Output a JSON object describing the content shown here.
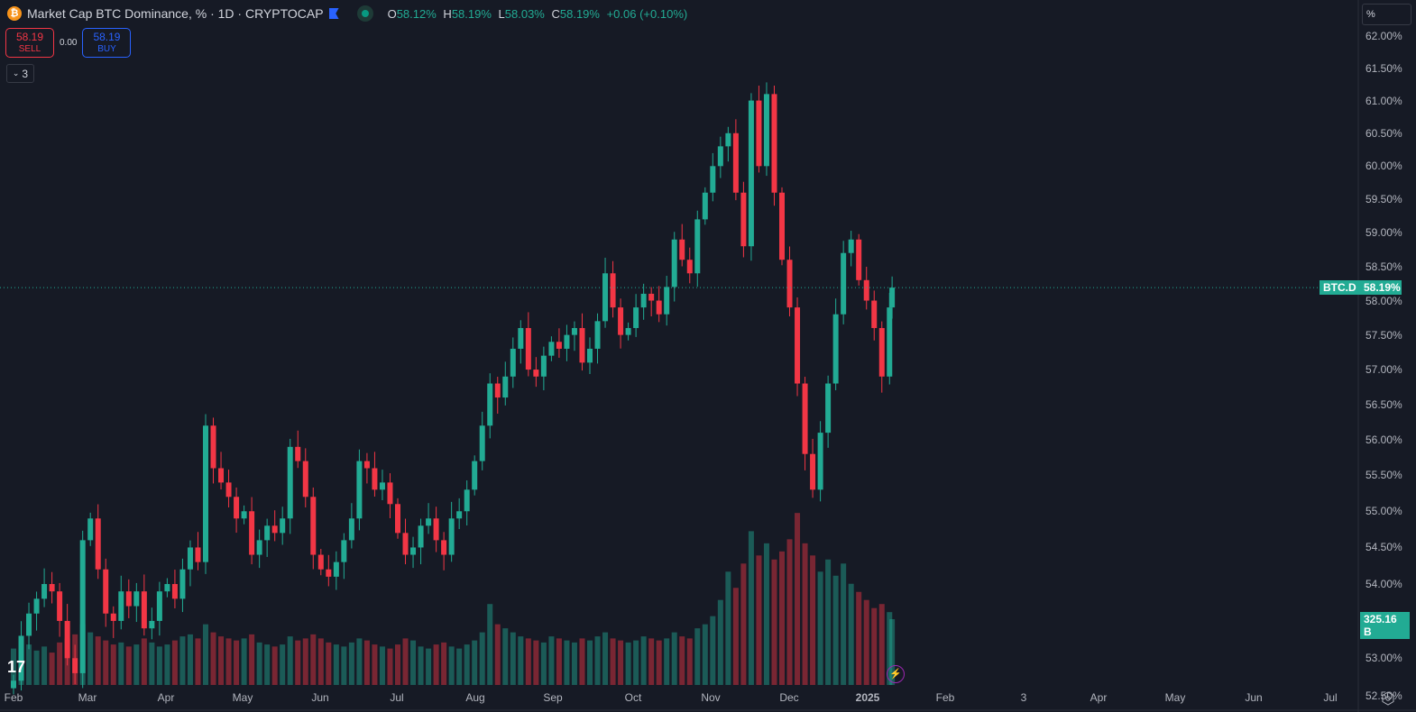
{
  "header": {
    "title": "Market Cap BTC Dominance, % · 1D · CRYPTOCAP",
    "o_label": "O",
    "o": "58.12%",
    "h_label": "H",
    "h": "58.19%",
    "l_label": "L",
    "l": "58.03%",
    "c_label": "C",
    "c": "58.19%",
    "change": "+0.06 (+0.10%)",
    "symbol_icon": "bitcoin-icon"
  },
  "trade": {
    "sell_price": "58.19",
    "sell_label": "SELL",
    "spread": "0.00",
    "buy_price": "58.19",
    "buy_label": "BUY"
  },
  "indicators_collapsed": "3",
  "scale_mode": "%",
  "tags": {
    "symbol": "BTC.D",
    "price": "58.19%",
    "volume": "325.16 B"
  },
  "colors": {
    "up": "#22ab94",
    "down": "#f23645",
    "bg": "#161a25"
  },
  "chart_data": {
    "type": "candlestick",
    "title": "Market Cap BTC Dominance, %",
    "interval": "1D",
    "source": "CRYPTOCAP",
    "y_axis": {
      "scale": "log",
      "range": [
        52.5,
        62.0
      ],
      "ticks": [
        "62.00%",
        "61.50%",
        "61.00%",
        "60.50%",
        "60.00%",
        "59.50%",
        "59.00%",
        "58.50%",
        "58.00%",
        "57.50%",
        "57.00%",
        "56.50%",
        "56.00%",
        "55.50%",
        "55.00%",
        "54.50%",
        "54.00%",
        "53.50%",
        "53.00%",
        "52.50%"
      ]
    },
    "x_axis": {
      "ticks": [
        "Feb",
        "Mar",
        "Apr",
        "May",
        "Jun",
        "Jul",
        "Aug",
        "Sep",
        "Oct",
        "Nov",
        "Dec",
        "2025",
        "Feb",
        "3",
        "Apr",
        "May",
        "Jun",
        "Jul"
      ]
    },
    "start_date": "2024-02-01",
    "step_days": 3,
    "close": [
      52.7,
      53.3,
      53.6,
      53.8,
      54.0,
      53.9,
      53.5,
      53.0,
      52.8,
      54.6,
      54.9,
      54.2,
      53.6,
      53.5,
      53.9,
      53.7,
      53.9,
      53.4,
      53.5,
      53.9,
      54.0,
      53.8,
      54.2,
      54.5,
      54.3,
      56.2,
      55.6,
      55.4,
      55.2,
      54.9,
      55.0,
      54.4,
      54.6,
      54.8,
      54.7,
      54.9,
      55.9,
      55.7,
      55.2,
      54.4,
      54.2,
      54.1,
      54.3,
      54.6,
      54.9,
      55.7,
      55.6,
      55.3,
      55.4,
      55.1,
      54.7,
      54.4,
      54.5,
      54.8,
      54.9,
      54.6,
      54.4,
      54.9,
      55.0,
      55.3,
      55.7,
      56.2,
      56.8,
      56.6,
      56.9,
      57.3,
      57.6,
      57.0,
      56.9,
      57.2,
      57.4,
      57.3,
      57.5,
      57.6,
      57.1,
      57.3,
      57.7,
      58.4,
      57.9,
      57.5,
      57.6,
      57.9,
      58.1,
      58.0,
      57.8,
      58.2,
      58.9,
      58.6,
      58.4,
      59.2,
      59.6,
      60.0,
      60.3,
      60.5,
      59.6,
      58.8,
      61.0,
      60.0,
      61.1,
      59.6,
      58.6,
      57.9,
      56.8,
      55.8,
      55.3,
      56.1,
      56.8,
      57.8,
      58.7,
      58.9,
      58.3,
      58.0,
      57.6,
      56.9,
      57.9,
      58.19
    ],
    "volume_b": [
      180,
      220,
      200,
      170,
      190,
      160,
      210,
      230,
      250,
      300,
      260,
      240,
      220,
      200,
      210,
      190,
      200,
      230,
      210,
      190,
      200,
      220,
      240,
      250,
      230,
      300,
      260,
      240,
      230,
      220,
      230,
      250,
      210,
      200,
      190,
      200,
      240,
      220,
      230,
      250,
      230,
      210,
      200,
      190,
      210,
      230,
      220,
      200,
      190,
      180,
      200,
      230,
      220,
      190,
      180,
      200,
      210,
      190,
      180,
      200,
      220,
      260,
      400,
      300,
      280,
      260,
      240,
      230,
      220,
      210,
      240,
      230,
      220,
      210,
      230,
      220,
      240,
      260,
      230,
      220,
      210,
      220,
      240,
      230,
      220,
      230,
      260,
      240,
      230,
      280,
      300,
      340,
      420,
      560,
      480,
      600,
      760,
      640,
      700,
      620,
      660,
      720,
      850,
      700,
      640,
      560,
      620,
      540,
      600,
      500,
      460,
      420,
      380,
      400,
      360,
      325.16
    ]
  }
}
